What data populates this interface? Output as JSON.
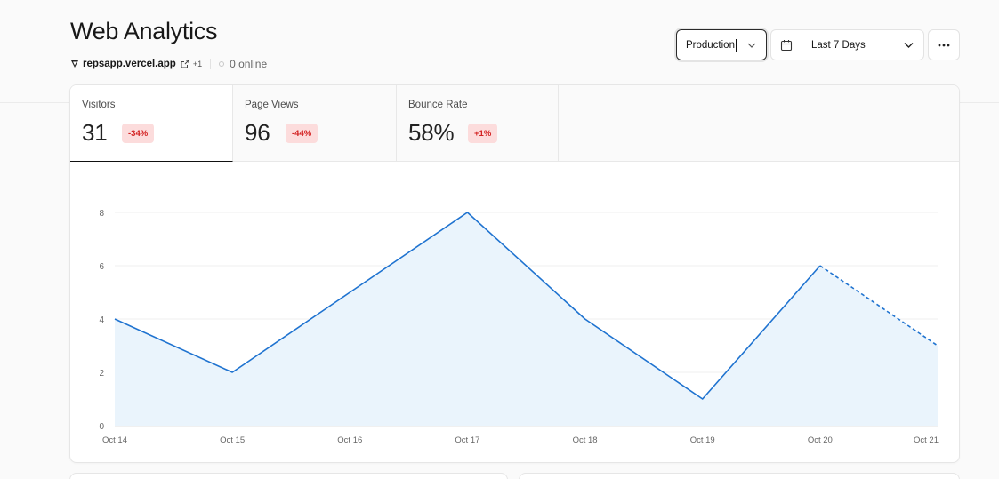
{
  "header": {
    "title": "Web Analytics",
    "project_domain": "repsapp.vercel.app",
    "extra_domains": "+1",
    "online": "0 online"
  },
  "controls": {
    "environment": "Production",
    "date_range": "Last 7 Days"
  },
  "icons": {
    "vercel": "vercel-triangle-icon",
    "external": "external-link-icon",
    "calendar": "calendar-icon",
    "chevron": "chevron-down-icon",
    "more": "ellipsis-icon"
  },
  "colors": {
    "line": "#1f73d0",
    "fill": "#eaf4fc",
    "badge_bg": "#fcdcdc",
    "badge_text": "#d32222"
  },
  "metrics": [
    {
      "label": "Visitors",
      "value": "31",
      "change": "-34%"
    },
    {
      "label": "Page Views",
      "value": "96",
      "change": "-44%"
    },
    {
      "label": "Bounce Rate",
      "value": "58%",
      "change": "+1%"
    }
  ],
  "chart_data": {
    "type": "area",
    "categories": [
      "Oct 14",
      "Oct 15",
      "Oct 16",
      "Oct 17",
      "Oct 18",
      "Oct 19",
      "Oct 20",
      "Oct 21"
    ],
    "values": [
      4,
      2,
      5,
      8,
      4,
      1,
      6,
      3
    ],
    "yticks": [
      0,
      2,
      4,
      6,
      8
    ],
    "ylim": [
      0,
      8
    ],
    "grid": true,
    "dashed_last_segment": true
  }
}
